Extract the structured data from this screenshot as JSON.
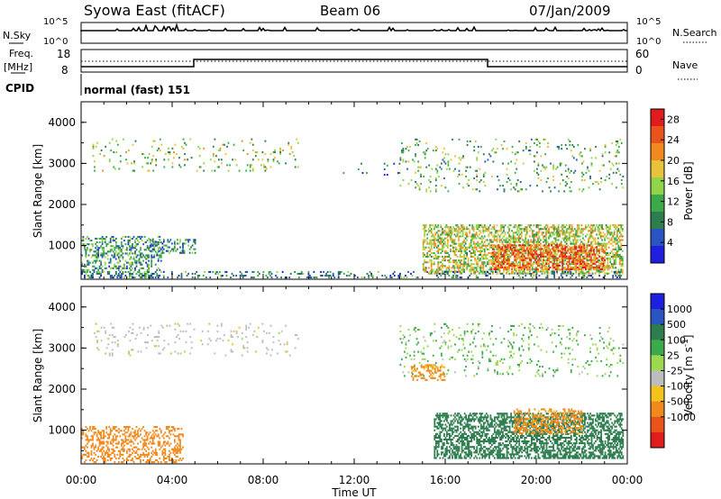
{
  "header": {
    "title": "Syowa East (fitACF)",
    "beam": "Beam 06",
    "date": "07/Jan/2009"
  },
  "status_panel": {
    "nsky_label": "N.Sky",
    "nsky_tick_top": "10^5",
    "nsky_tick_bottom": "10^0",
    "nsearch_label": "N.Search",
    "nsearch_tick_top": "10^5",
    "nsearch_tick_bottom": "10^0",
    "freq_label_line1": "Freq.",
    "freq_label_line2": "[MHz]",
    "freq_tick_top": "18",
    "freq_tick_bottom": "8",
    "nave_label": "Nave",
    "nave_tick_top": "60",
    "nave_tick_bottom": "0",
    "cpid_label": "CPID",
    "cpid_value": "normal (fast) 151"
  },
  "colors": {
    "power_scale": [
      "#1f1fe0",
      "#2a55c0",
      "#2e7d4f",
      "#3caa4a",
      "#8fd44a",
      "#e8c23a",
      "#f08a1e",
      "#e8541c",
      "#e01c1c"
    ],
    "velocity_scale": [
      "#1f1fe0",
      "#2a55c0",
      "#2e7d4f",
      "#3caa4a",
      "#9cd94f",
      "#bdbdbd",
      "#f2c21d",
      "#f08a1e",
      "#e8541c",
      "#e01c1c"
    ]
  },
  "chart_data": [
    {
      "type": "heatmap",
      "name": "power",
      "ylabel": "Slant Range [km]",
      "xlabel": "",
      "xlim": [
        "00:00",
        "24:00"
      ],
      "ylim": [
        180,
        4500
      ],
      "x_ticks": [
        "00:00",
        "04:00",
        "08:00",
        "12:00",
        "16:00",
        "20:00",
        "00:00"
      ],
      "y_ticks": [
        "1000",
        "2000",
        "3000",
        "4000"
      ],
      "colorbar": {
        "label": "Power [dB]",
        "ticks": [
          "4",
          "8",
          "12",
          "16",
          "20",
          "24",
          "28"
        ],
        "range": [
          0,
          30
        ]
      },
      "regions": [
        {
          "t0": 0.0,
          "t1": 3.5,
          "r0": 200,
          "r1": 1200,
          "density": 0.35,
          "value": 10
        },
        {
          "t0": 3.0,
          "t1": 5.0,
          "r0": 800,
          "r1": 1150,
          "density": 0.35,
          "value": 8
        },
        {
          "t0": 15.0,
          "t1": 23.8,
          "r0": 300,
          "r1": 1500,
          "density": 0.5,
          "value": 16
        },
        {
          "t0": 18.0,
          "t1": 23.0,
          "r0": 400,
          "r1": 1000,
          "density": 0.55,
          "value": 24
        },
        {
          "t0": 0.5,
          "t1": 9.5,
          "r0": 2800,
          "r1": 3600,
          "density": 0.06,
          "value": 14
        },
        {
          "t0": 14.0,
          "t1": 23.8,
          "r0": 2300,
          "r1": 3600,
          "density": 0.08,
          "value": 12
        },
        {
          "t0": 11.5,
          "t1": 14.0,
          "r0": 2700,
          "r1": 3000,
          "density": 0.05,
          "value": 6
        },
        {
          "t0": 0.0,
          "t1": 23.8,
          "r0": 200,
          "r1": 350,
          "density": 0.2,
          "value": 8
        }
      ]
    },
    {
      "type": "heatmap",
      "name": "velocity",
      "ylabel": "Slant Range [km]",
      "xlabel": "Time UT",
      "xlim": [
        "00:00",
        "24:00"
      ],
      "ylim": [
        180,
        4500
      ],
      "x_ticks": [
        "00:00",
        "04:00",
        "08:00",
        "12:00",
        "16:00",
        "20:00",
        "00:00"
      ],
      "y_ticks": [
        "1000",
        "2000",
        "3000",
        "4000"
      ],
      "colorbar": {
        "label": "Velocity [m s^-1]",
        "ticks": [
          "1000",
          "500",
          "100",
          "25",
          "-25",
          "-100",
          "-500",
          "-1000"
        ]
      },
      "regions": [
        {
          "t0": 0.0,
          "t1": 4.5,
          "r0": 200,
          "r1": 1100,
          "density": 0.35,
          "value": -200
        },
        {
          "t0": 15.5,
          "t1": 23.8,
          "r0": 300,
          "r1": 1400,
          "density": 0.55,
          "value": 300
        },
        {
          "t0": 19.0,
          "t1": 22.0,
          "r0": 900,
          "r1": 1500,
          "density": 0.45,
          "value": -150
        },
        {
          "t0": 0.5,
          "t1": 9.5,
          "r0": 2800,
          "r1": 3600,
          "density": 0.06,
          "value": 0
        },
        {
          "t0": 14.0,
          "t1": 23.8,
          "r0": 2300,
          "r1": 3600,
          "density": 0.08,
          "value": 50
        },
        {
          "t0": 14.5,
          "t1": 16.0,
          "r0": 2200,
          "r1": 2600,
          "density": 0.3,
          "value": -150
        }
      ]
    }
  ]
}
